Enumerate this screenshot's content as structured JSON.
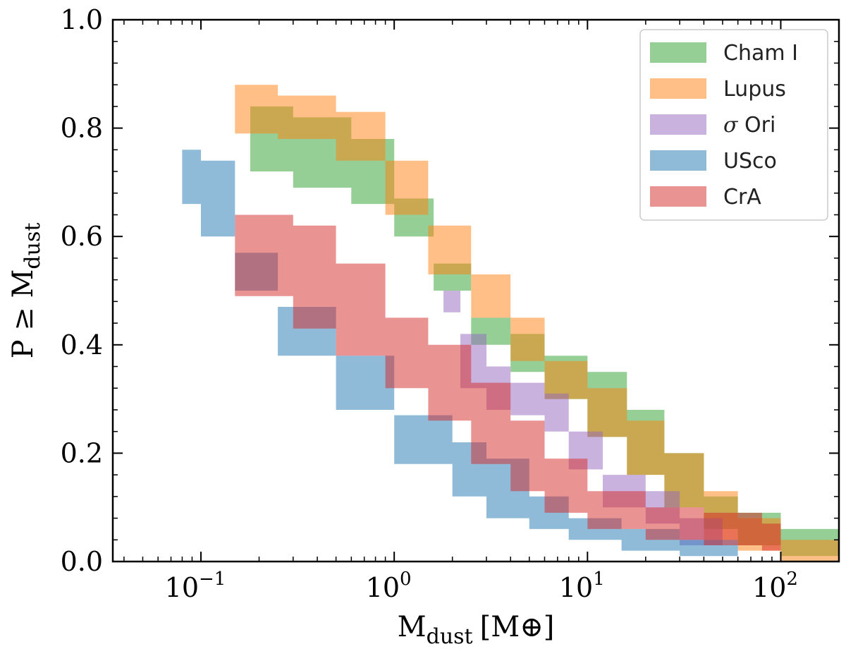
{
  "chart_data": {
    "type": "area",
    "title": "",
    "xlabel": "M_dust [M_⊕]",
    "xlabel_main": "M",
    "xlabel_sub": "dust",
    "xlabel_unit": "[M⊕]",
    "ylabel": "P ≥ M_dust",
    "ylabel_main": "P ≥ M",
    "ylabel_sub": "dust",
    "xscale": "log",
    "xlim": [
      0.035,
      200
    ],
    "ylim": [
      0.0,
      1.0
    ],
    "grid": false,
    "legend_position": "top-right",
    "x_ticks": [
      {
        "value": 0.1,
        "base": "10",
        "exp": "−1"
      },
      {
        "value": 1,
        "base": "10",
        "exp": "0"
      },
      {
        "value": 10,
        "base": "10",
        "exp": "1"
      },
      {
        "value": 100,
        "base": "10",
        "exp": "2"
      }
    ],
    "y_ticks": [
      {
        "value": 0.0,
        "label": "0.0"
      },
      {
        "value": 0.2,
        "label": "0.2"
      },
      {
        "value": 0.4,
        "label": "0.4"
      },
      {
        "value": 0.6,
        "label": "0.6"
      },
      {
        "value": 0.8,
        "label": "0.8"
      },
      {
        "value": 1.0,
        "label": "1.0"
      }
    ],
    "series": [
      {
        "name": "Cham I",
        "color": "#2ca02c",
        "opacity": 0.5,
        "x": [
          0.18,
          0.3,
          0.6,
          1.0,
          1.6,
          2.5,
          4,
          6,
          10,
          16,
          25,
          40,
          60,
          100,
          200
        ],
        "upper": [
          0.84,
          0.82,
          0.78,
          0.67,
          0.55,
          0.45,
          0.42,
          0.38,
          0.35,
          0.28,
          0.2,
          0.12,
          0.09,
          0.06,
          0.03
        ],
        "lower": [
          0.72,
          0.69,
          0.66,
          0.6,
          0.5,
          0.4,
          0.35,
          0.3,
          0.23,
          0.16,
          0.1,
          0.06,
          0.03,
          0.01,
          0.0
        ]
      },
      {
        "name": "Lupus",
        "color": "#ff7f0e",
        "opacity": 0.5,
        "x": [
          0.15,
          0.25,
          0.5,
          0.9,
          1.5,
          2.5,
          4,
          6,
          10,
          16,
          25,
          40,
          60,
          100,
          200
        ],
        "upper": [
          0.88,
          0.86,
          0.83,
          0.74,
          0.62,
          0.53,
          0.45,
          0.37,
          0.32,
          0.26,
          0.2,
          0.13,
          0.08,
          0.04,
          0.0
        ],
        "lower": [
          0.79,
          0.78,
          0.74,
          0.64,
          0.53,
          0.45,
          0.37,
          0.3,
          0.23,
          0.16,
          0.1,
          0.04,
          0.02,
          0.0,
          0.0
        ]
      },
      {
        "name": "σ Ori",
        "color": "#9467bd",
        "opacity": 0.5,
        "x": [
          1.8,
          2.2,
          3,
          4,
          6,
          8,
          12,
          20,
          30,
          50
        ],
        "upper": [
          0.5,
          0.42,
          0.36,
          0.33,
          0.31,
          0.24,
          0.16,
          0.13,
          0.08,
          0.02
        ],
        "lower": [
          0.46,
          0.32,
          0.28,
          0.27,
          0.24,
          0.17,
          0.1,
          0.07,
          0.03,
          0.0
        ]
      },
      {
        "name": "USco",
        "color": "#1f77b4",
        "opacity": 0.5,
        "x": [
          0.08,
          0.1,
          0.15,
          0.25,
          0.5,
          1.0,
          2,
          3,
          5,
          8,
          15,
          30,
          60
        ],
        "upper": [
          0.76,
          0.74,
          0.57,
          0.47,
          0.38,
          0.27,
          0.22,
          0.19,
          0.12,
          0.08,
          0.06,
          0.04,
          0.02
        ],
        "lower": [
          0.66,
          0.6,
          0.5,
          0.38,
          0.28,
          0.18,
          0.12,
          0.08,
          0.06,
          0.04,
          0.02,
          0.01,
          0.0
        ]
      },
      {
        "name": "CrA",
        "color": "#d62728",
        "opacity": 0.5,
        "x": [
          0.15,
          0.3,
          0.5,
          0.9,
          1.5,
          2.5,
          4,
          6,
          10,
          20,
          40,
          80,
          100
        ],
        "upper": [
          0.64,
          0.62,
          0.55,
          0.45,
          0.4,
          0.33,
          0.26,
          0.19,
          0.13,
          0.1,
          0.09,
          0.07,
          0.06
        ],
        "lower": [
          0.49,
          0.43,
          0.38,
          0.32,
          0.26,
          0.18,
          0.13,
          0.09,
          0.06,
          0.04,
          0.03,
          0.02,
          0.0
        ]
      }
    ]
  }
}
